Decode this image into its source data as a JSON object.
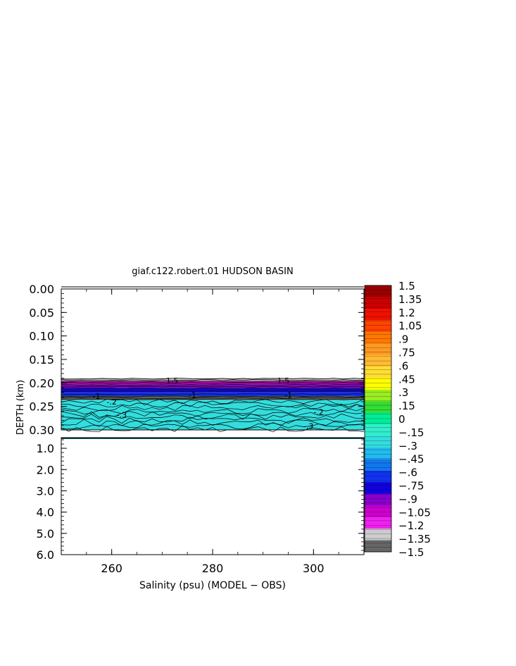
{
  "chart_data": {
    "type": "heatmap",
    "title": "giaf.c122.robert.01 HUDSON BASIN",
    "xlabel": "Salinity (psu) (MODEL − OBS)",
    "ylabel": "DEPTH (km)",
    "x_ticks": [
      "260",
      "280",
      "300"
    ],
    "x_tick_values": [
      260,
      280,
      300
    ],
    "xlim": [
      250,
      310
    ],
    "upper_panel": {
      "ylim": [
        0.0,
        0.3
      ],
      "y_ticks": [
        "0.00",
        "0.05",
        "0.10",
        "0.15",
        "0.20",
        "0.25",
        "0.30"
      ],
      "y_tick_values": [
        0.0,
        0.05,
        0.1,
        0.15,
        0.2,
        0.25,
        0.3
      ],
      "data_start_depth": 0.19,
      "layers": [
        {
          "from": 0.19,
          "to": 0.196,
          "value": -1.35
        },
        {
          "from": 0.196,
          "to": 0.203,
          "value": -1.05
        },
        {
          "from": 0.203,
          "to": 0.211,
          "value": -0.9
        },
        {
          "from": 0.211,
          "to": 0.22,
          "value": -0.8
        },
        {
          "from": 0.22,
          "to": 0.228,
          "value": -0.65
        },
        {
          "from": 0.228,
          "to": 0.236,
          "value": -1.5
        },
        {
          "from": 0.236,
          "to": 0.3,
          "value": -0.3
        }
      ],
      "contour_labels": [
        {
          "x": 272,
          "depth": 0.195,
          "text": "1.5"
        },
        {
          "x": 294,
          "depth": 0.195,
          "text": "1.5"
        },
        {
          "x": 257,
          "depth": 0.228,
          "text": "-1"
        },
        {
          "x": 276,
          "depth": 0.226,
          "text": "-1"
        },
        {
          "x": 295,
          "depth": 0.226,
          "text": "-1"
        },
        {
          "x": 260,
          "depth": 0.24,
          "text": "-.2"
        },
        {
          "x": 301,
          "depth": 0.262,
          "text": "-.2"
        },
        {
          "x": 262,
          "depth": 0.268,
          "text": "-.3"
        },
        {
          "x": 299,
          "depth": 0.292,
          "text": "-.3"
        }
      ]
    },
    "lower_panel": {
      "ylim": [
        0.5,
        6.0
      ],
      "y_ticks": [
        "1.0",
        "2.0",
        "3.0",
        "4.0",
        "5.0",
        "6.0"
      ],
      "y_tick_values": [
        1.0,
        2.0,
        3.0,
        4.0,
        5.0,
        6.0
      ],
      "data_band": {
        "from": 0.5,
        "to": 0.56,
        "value": -0.3
      }
    },
    "colorbar": {
      "labels": [
        "1.5",
        "1.35",
        "1.2",
        "1.05",
        ".9",
        ".75",
        ".6",
        ".45",
        ".3",
        ".15",
        "0",
        "−.15",
        "−.3",
        "−.45",
        "−.6",
        "−.75",
        "−.9",
        "−1.05",
        "−1.2",
        "−1.35",
        "−1.5"
      ],
      "values": [
        1.5,
        1.35,
        1.2,
        1.05,
        0.9,
        0.75,
        0.6,
        0.45,
        0.3,
        0.15,
        0,
        -0.15,
        -0.3,
        -0.45,
        -0.6,
        -0.75,
        -0.9,
        -1.05,
        -1.2,
        -1.35,
        -1.5
      ],
      "colors": [
        "#990000",
        "#cc0000",
        "#ee1100",
        "#ff4400",
        "#ff7700",
        "#ff9922",
        "#ffbb33",
        "#ffdd33",
        "#ffff00",
        "#99ee22",
        "#33dd33",
        "#00ee99",
        "#33eecc",
        "#33dddd",
        "#22bbee",
        "#1177ee",
        "#1133ee",
        "#1100dd",
        "#8800cc",
        "#cc00cc",
        "#ee22ee",
        "#cccccc",
        "#666666"
      ]
    }
  }
}
